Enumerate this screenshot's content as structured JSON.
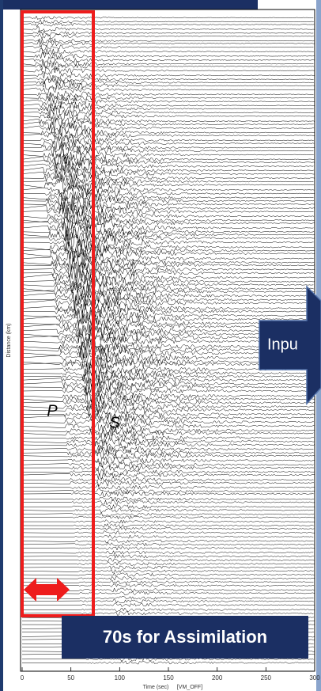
{
  "chart_data": {
    "type": "record-section",
    "xlabel": "Time (sec)",
    "xnote": "[VM_OFF]",
    "ylabel": "Distance (km)",
    "xlim": [
      0,
      300
    ],
    "xticks": [
      0,
      50,
      100,
      150,
      200,
      250,
      300
    ],
    "phase_labels": [
      "P",
      "S"
    ],
    "arrow_label": "Inpu",
    "callout": "70s for Assimilation"
  }
}
